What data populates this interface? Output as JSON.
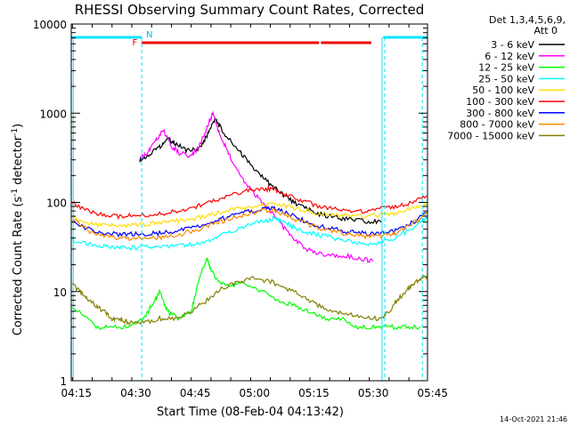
{
  "chart_data": {
    "type": "line",
    "title": "RHESSI Observing Summary Count Rates, Corrected",
    "xlabel": "Start Time (08-Feb-04 04:13:42)",
    "ylabel_main": "Corrected Count Rate (s",
    "ylabel_sup1": "-1",
    "ylabel_mid": " detector",
    "ylabel_sup2": "-1",
    "ylabel_end": ")",
    "yscale": "log",
    "ylim": [
      1,
      10000
    ],
    "xlim_min": [
      253.7,
      343.7
    ],
    "x_ticks": [
      {
        "label": "04:15",
        "min": 255
      },
      {
        "label": "04:30",
        "min": 270
      },
      {
        "label": "04:45",
        "min": 285
      },
      {
        "label": "05:00",
        "min": 300
      },
      {
        "label": "05:15",
        "min": 315
      },
      {
        "label": "05:30",
        "min": 330
      },
      {
        "label": "05:45",
        "min": 345
      }
    ],
    "y_ticks": [
      {
        "label": "1",
        "value": 1
      },
      {
        "label": "10",
        "value": 10
      },
      {
        "label": "100",
        "value": 100
      },
      {
        "label": "1000",
        "value": 1000
      },
      {
        "label": "10000",
        "value": 10000
      }
    ],
    "legend_header": [
      "Det 1,3,4,5,6,9,",
      "Att 0"
    ],
    "legend_placement": "top-right-outside",
    "series": [
      {
        "name": "3 - 6 keV",
        "color": "#000000",
        "points": [
          [
            271,
            300
          ],
          [
            273,
            330
          ],
          [
            276,
            420
          ],
          [
            278,
            520
          ],
          [
            280,
            460
          ],
          [
            283,
            380
          ],
          [
            286,
            400
          ],
          [
            288,
            560
          ],
          [
            290,
            880
          ],
          [
            292,
            620
          ],
          [
            295,
            430
          ],
          [
            298,
            300
          ],
          [
            301,
            210
          ],
          [
            304,
            160
          ],
          [
            307,
            125
          ],
          [
            310,
            100
          ],
          [
            313,
            85
          ],
          [
            316,
            75
          ],
          [
            320,
            68
          ],
          [
            324,
            64
          ],
          [
            328,
            62
          ],
          [
            332,
            60
          ]
        ]
      },
      {
        "name": "6 - 12 keV",
        "color": "#ff00ff",
        "points": [
          [
            271,
            320
          ],
          [
            273,
            360
          ],
          [
            275,
            500
          ],
          [
            277,
            640
          ],
          [
            279,
            430
          ],
          [
            281,
            360
          ],
          [
            284,
            330
          ],
          [
            286,
            420
          ],
          [
            288,
            700
          ],
          [
            289.5,
            1000
          ],
          [
            291,
            620
          ],
          [
            293,
            400
          ],
          [
            295,
            250
          ],
          [
            298,
            160
          ],
          [
            301,
            110
          ],
          [
            304,
            80
          ],
          [
            307,
            55
          ],
          [
            310,
            40
          ],
          [
            313,
            30
          ],
          [
            316,
            27
          ],
          [
            320,
            25
          ],
          [
            324,
            25
          ],
          [
            328,
            23
          ],
          [
            330,
            22
          ]
        ]
      },
      {
        "name": "12 - 25 keV",
        "color": "#00ff00",
        "points": [
          [
            254,
            7
          ],
          [
            260,
            4
          ],
          [
            264,
            4
          ],
          [
            268,
            4
          ],
          [
            272,
            5
          ],
          [
            274,
            7
          ],
          [
            276,
            10
          ],
          [
            278,
            6
          ],
          [
            281,
            5
          ],
          [
            284,
            6
          ],
          [
            286,
            14
          ],
          [
            288,
            24
          ],
          [
            289,
            17
          ],
          [
            291,
            13
          ],
          [
            294,
            12
          ],
          [
            298,
            12
          ],
          [
            302,
            10
          ],
          [
            306,
            8
          ],
          [
            310,
            7
          ],
          [
            314,
            6
          ],
          [
            318,
            5
          ],
          [
            322,
            5
          ],
          [
            326,
            4
          ],
          [
            330,
            4
          ],
          [
            334,
            4
          ],
          [
            338,
            4
          ],
          [
            342,
            4
          ]
        ]
      },
      {
        "name": "25 - 50 keV",
        "color": "#00ffff",
        "points": [
          [
            254,
            38
          ],
          [
            258,
            34
          ],
          [
            262,
            32
          ],
          [
            266,
            31
          ],
          [
            270,
            31
          ],
          [
            274,
            32
          ],
          [
            278,
            32
          ],
          [
            282,
            33
          ],
          [
            286,
            35
          ],
          [
            290,
            40
          ],
          [
            294,
            47
          ],
          [
            298,
            55
          ],
          [
            302,
            62
          ],
          [
            305,
            66
          ],
          [
            308,
            58
          ],
          [
            311,
            50
          ],
          [
            314,
            45
          ],
          [
            318,
            42
          ],
          [
            322,
            38
          ],
          [
            326,
            36
          ],
          [
            330,
            34
          ],
          [
            334,
            38
          ],
          [
            338,
            46
          ],
          [
            342,
            60
          ],
          [
            343.7,
            70
          ]
        ]
      },
      {
        "name": "50 - 100 keV",
        "color": "#ffdd00",
        "points": [
          [
            254,
            68
          ],
          [
            258,
            60
          ],
          [
            262,
            55
          ],
          [
            266,
            55
          ],
          [
            270,
            57
          ],
          [
            274,
            58
          ],
          [
            278,
            60
          ],
          [
            282,
            63
          ],
          [
            286,
            68
          ],
          [
            290,
            75
          ],
          [
            294,
            82
          ],
          [
            298,
            88
          ],
          [
            302,
            92
          ],
          [
            305,
            96
          ],
          [
            308,
            90
          ],
          [
            312,
            82
          ],
          [
            316,
            76
          ],
          [
            320,
            72
          ],
          [
            324,
            70
          ],
          [
            328,
            70
          ],
          [
            332,
            72
          ],
          [
            336,
            78
          ],
          [
            340,
            86
          ],
          [
            343.7,
            95
          ]
        ]
      },
      {
        "name": "100 - 300 keV",
        "color": "#ff0000",
        "points": [
          [
            254,
            100
          ],
          [
            258,
            80
          ],
          [
            262,
            72
          ],
          [
            266,
            70
          ],
          [
            270,
            71
          ],
          [
            274,
            73
          ],
          [
            278,
            76
          ],
          [
            282,
            82
          ],
          [
            286,
            92
          ],
          [
            290,
            106
          ],
          [
            294,
            122
          ],
          [
            298,
            135
          ],
          [
            302,
            143
          ],
          [
            305,
            140
          ],
          [
            308,
            122
          ],
          [
            312,
            104
          ],
          [
            316,
            92
          ],
          [
            320,
            85
          ],
          [
            324,
            80
          ],
          [
            328,
            78
          ],
          [
            332,
            85
          ],
          [
            336,
            90
          ],
          [
            340,
            100
          ],
          [
            343.7,
            118
          ]
        ]
      },
      {
        "name": "300 - 800 keV",
        "color": "#0000ff",
        "points": [
          [
            254,
            62
          ],
          [
            258,
            50
          ],
          [
            262,
            45
          ],
          [
            266,
            44
          ],
          [
            270,
            44
          ],
          [
            274,
            45
          ],
          [
            278,
            46
          ],
          [
            282,
            50
          ],
          [
            286,
            55
          ],
          [
            290,
            62
          ],
          [
            294,
            70
          ],
          [
            298,
            78
          ],
          [
            302,
            84
          ],
          [
            305,
            86
          ],
          [
            308,
            76
          ],
          [
            312,
            64
          ],
          [
            316,
            55
          ],
          [
            320,
            50
          ],
          [
            324,
            47
          ],
          [
            328,
            45
          ],
          [
            332,
            45
          ],
          [
            336,
            48
          ],
          [
            340,
            60
          ],
          [
            343.7,
            78
          ]
        ]
      },
      {
        "name": "800 - 7000 keV",
        "color": "#ff8800",
        "points": [
          [
            254,
            64
          ],
          [
            258,
            48
          ],
          [
            262,
            42
          ],
          [
            266,
            40
          ],
          [
            270,
            39
          ],
          [
            274,
            40
          ],
          [
            278,
            41
          ],
          [
            282,
            45
          ],
          [
            286,
            50
          ],
          [
            290,
            58
          ],
          [
            294,
            66
          ],
          [
            298,
            74
          ],
          [
            302,
            80
          ],
          [
            305,
            82
          ],
          [
            308,
            72
          ],
          [
            312,
            60
          ],
          [
            316,
            52
          ],
          [
            320,
            47
          ],
          [
            324,
            44
          ],
          [
            328,
            42
          ],
          [
            332,
            42
          ],
          [
            336,
            46
          ],
          [
            340,
            58
          ],
          [
            343.7,
            76
          ]
        ]
      },
      {
        "name": "7000 - 15000 keV",
        "color": "#808000",
        "points": [
          [
            254,
            12
          ],
          [
            256,
            10
          ],
          [
            258,
            8
          ],
          [
            260,
            7
          ],
          [
            262,
            6
          ],
          [
            264,
            5
          ],
          [
            266,
            5
          ],
          [
            268,
            4.5
          ],
          [
            272,
            4.5
          ],
          [
            276,
            5
          ],
          [
            280,
            5
          ],
          [
            284,
            6
          ],
          [
            288,
            8
          ],
          [
            292,
            11
          ],
          [
            296,
            13
          ],
          [
            300,
            14
          ],
          [
            304,
            13
          ],
          [
            308,
            11
          ],
          [
            312,
            9
          ],
          [
            316,
            7
          ],
          [
            320,
            6
          ],
          [
            324,
            5.5
          ],
          [
            328,
            5
          ],
          [
            332,
            5
          ],
          [
            334,
            6
          ],
          [
            336,
            8
          ],
          [
            338,
            10
          ],
          [
            340,
            12
          ],
          [
            342,
            14
          ],
          [
            343.7,
            15
          ]
        ]
      }
    ],
    "bar_labels": [
      "F",
      "N"
    ],
    "footer_date": "14-Oct-2021 21:46"
  }
}
